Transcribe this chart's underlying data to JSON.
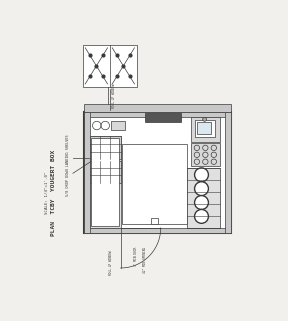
{
  "bg_color": "#f2f0ec",
  "line_color": "#3a3a3a",
  "wall_color": "#c8c8c8",
  "dark_color": "#555555",
  "title": "PLAN  TCBY  YOUGERT BOX",
  "subtitle": "SCALE: 1/4\"=1'-0\"",
  "ann_roll_top": "ROLL-UP WINDOW",
  "ann_roll_bot": "ROLL-UP WINDOW",
  "ann_shelves": "5/8 DROP DOWN LANDING SHELVES",
  "ann_door1": "3' MIN DOOR",
  "ann_door2": "42\" MIN OPENING"
}
